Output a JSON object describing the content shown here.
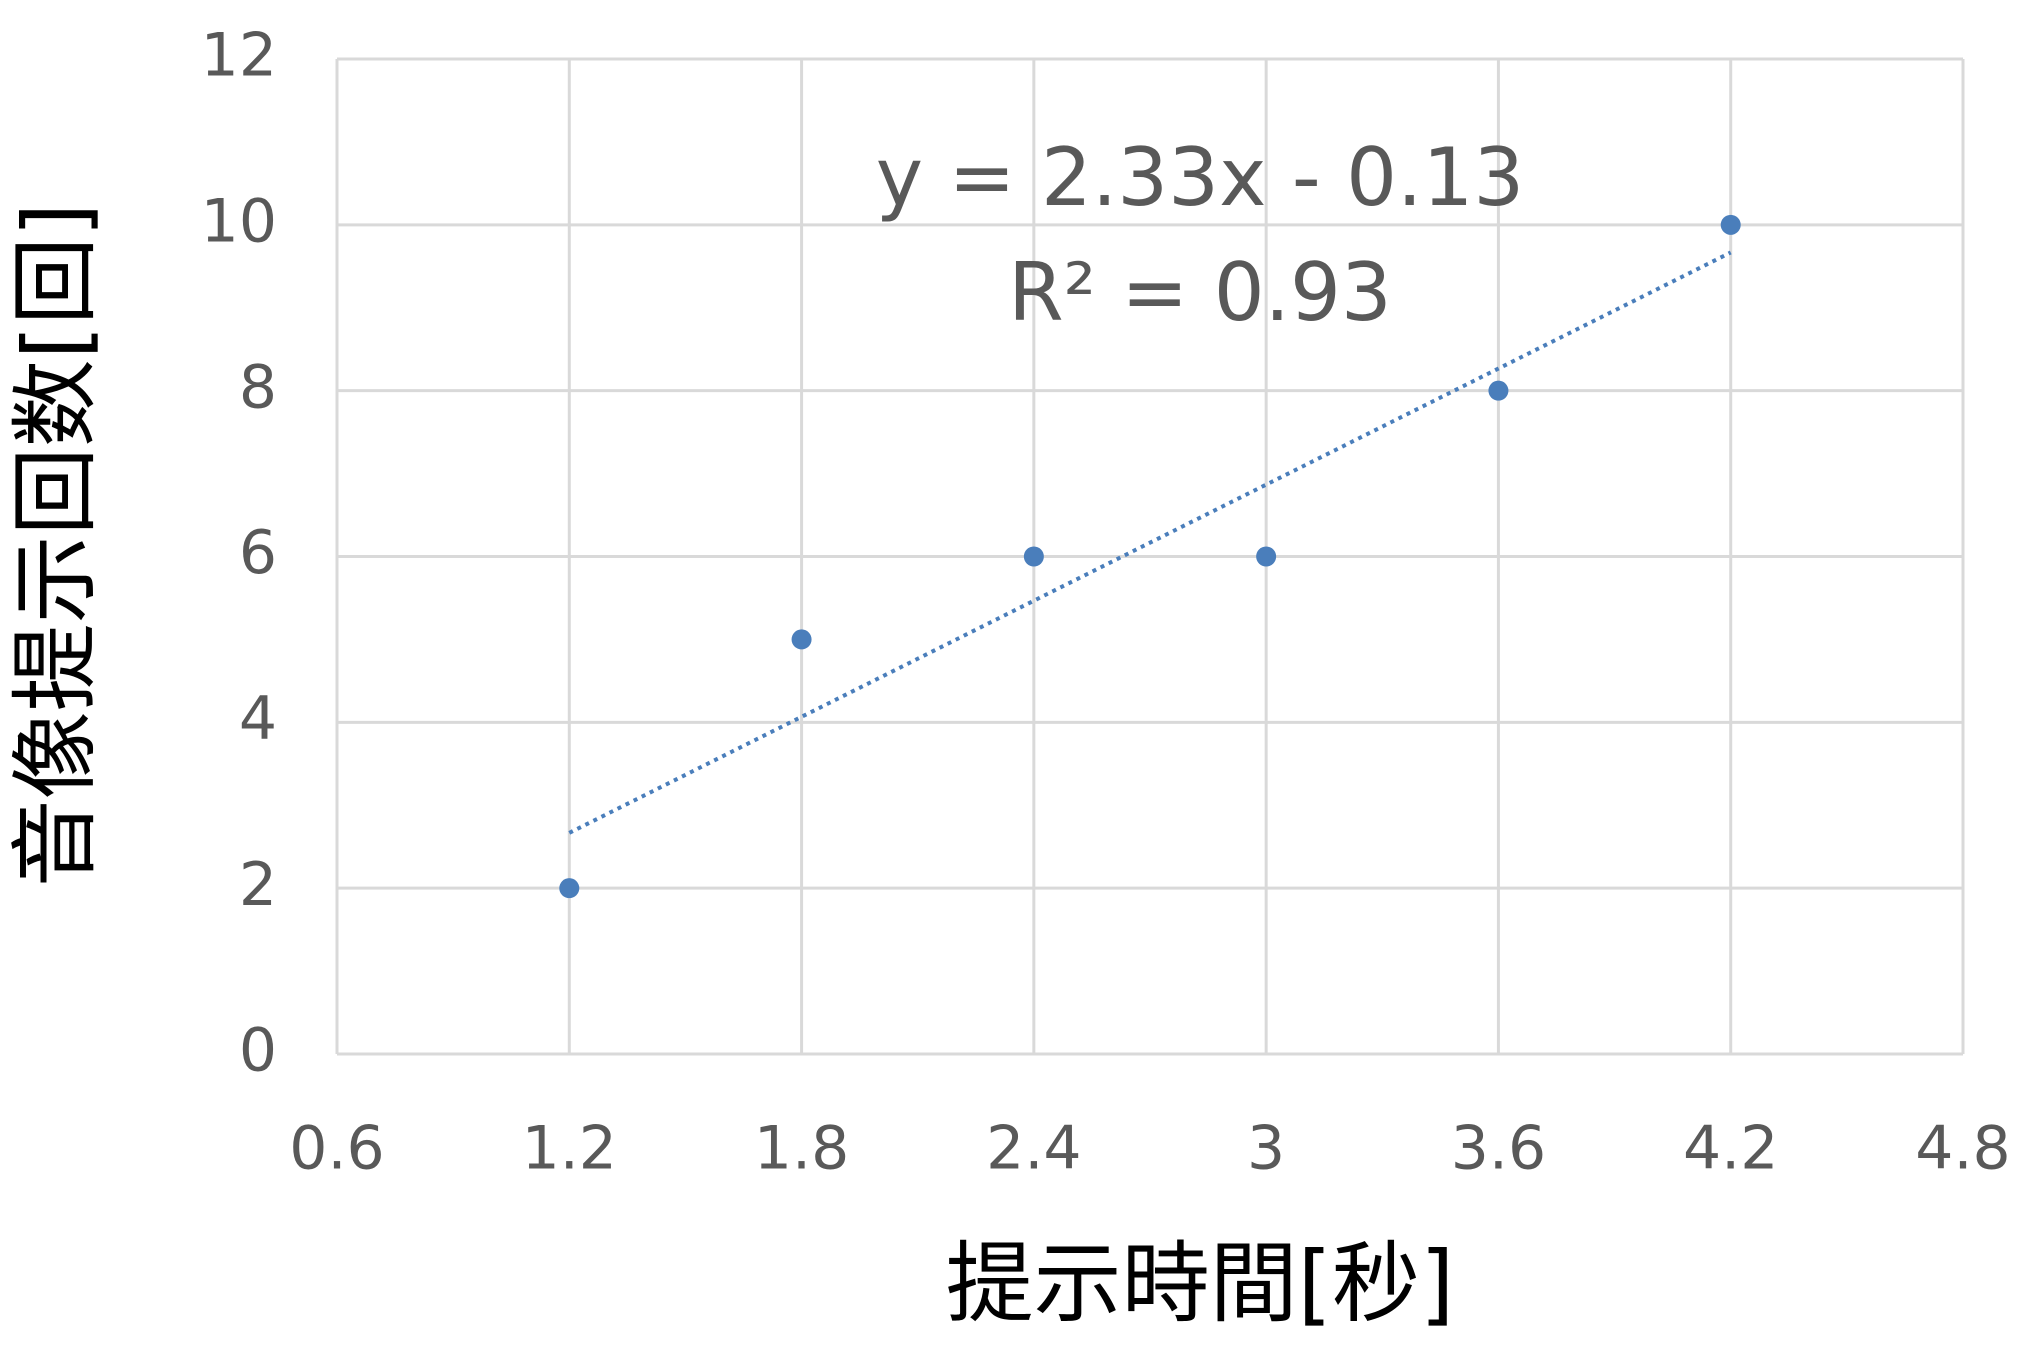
{
  "chart_data": {
    "type": "scatter",
    "x_label": "提示時間[秒]",
    "y_label": "音像提示回数[回]",
    "annotations": [
      "y = 2.33x - 0.13",
      "R² = 0.93"
    ],
    "x": [
      1.2,
      1.8,
      2.4,
      3,
      3.6,
      4.2
    ],
    "series": [
      {
        "color": "#4a7ebb",
        "values": [
          2,
          5,
          6,
          6,
          8,
          10
        ]
      }
    ],
    "trendline": "linear",
    "xlim": [
      0.6,
      4.8
    ],
    "xticks": [
      0.6,
      1.2,
      1.8,
      2.4,
      3,
      3.6,
      4.2,
      4.8
    ],
    "ylim": [
      0,
      12
    ],
    "yticks": [
      0,
      2,
      4,
      6,
      8,
      10,
      12
    ],
    "grid": true
  }
}
